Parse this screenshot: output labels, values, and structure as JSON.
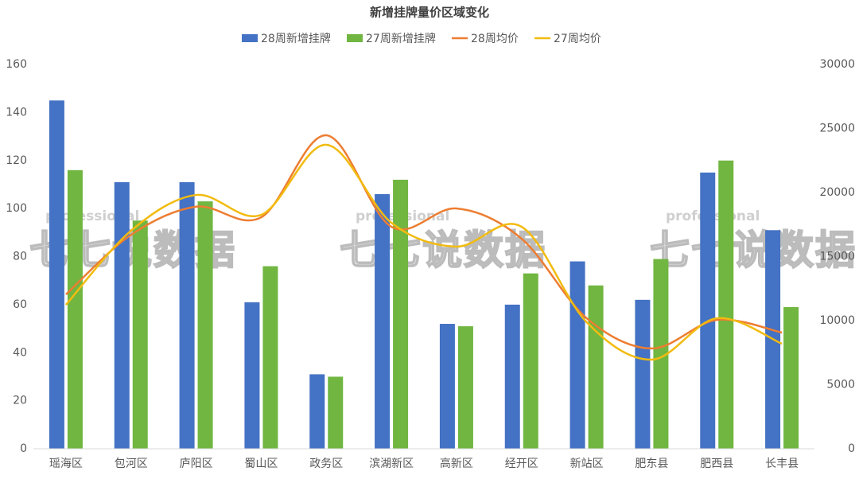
{
  "chart_data": {
    "type": "bar-line",
    "title": "新增挂牌量价区域变化",
    "categories": [
      "瑶海区",
      "包河区",
      "庐阳区",
      "蜀山区",
      "政务区",
      "滨湖新区",
      "高新区",
      "经开区",
      "新站区",
      "肥东县",
      "肥西县",
      "长丰县"
    ],
    "series": [
      {
        "name": "28周新增挂牌",
        "type": "bar",
        "color": "#4472c4",
        "values": [
          145,
          111,
          111,
          61,
          31,
          106,
          52,
          60,
          78,
          62,
          115,
          91
        ]
      },
      {
        "name": "27周新增挂牌",
        "type": "bar",
        "color": "#70b641",
        "values": [
          116,
          95,
          103,
          76,
          30,
          112,
          51,
          73,
          68,
          79,
          120,
          59
        ]
      },
      {
        "name": "28周均价",
        "type": "line",
        "axis": "y2",
        "color": "#ed7d31",
        "values": [
          12050,
          16700,
          18900,
          18070,
          24470,
          17330,
          18760,
          16400,
          10190,
          7830,
          10060,
          9070
        ]
      },
      {
        "name": "27周均价",
        "type": "line",
        "axis": "y2",
        "color": "#f2bb10",
        "values": [
          11240,
          17020,
          19810,
          18260,
          23730,
          17640,
          15780,
          17330,
          9880,
          6960,
          10190,
          8200
        ]
      }
    ],
    "ylim": [
      0,
      160
    ],
    "yticks": [
      0,
      20,
      40,
      60,
      80,
      100,
      120,
      140,
      160
    ],
    "y2lim": [
      0,
      30000
    ],
    "y2ticks": [
      0,
      5000,
      10000,
      15000,
      20000,
      25000,
      30000
    ],
    "legend": "top",
    "watermark": {
      "small": "professional",
      "large": "七七说数据"
    }
  }
}
